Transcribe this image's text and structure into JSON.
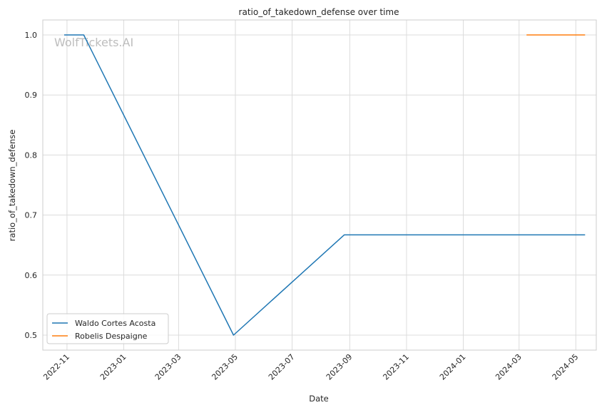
{
  "chart_data": {
    "type": "line",
    "title": "ratio_of_takedown_defense over time",
    "xlabel": "Date",
    "ylabel": "ratio_of_takedown_defense",
    "watermark": "WolfTickets.AI",
    "x_tick_labels": [
      "2022-11",
      "2023-01",
      "2023-03",
      "2023-05",
      "2023-07",
      "2023-09",
      "2023-11",
      "2024-01",
      "2024-03",
      "2024-05"
    ],
    "y_tick_labels": [
      "0.5",
      "0.6",
      "0.7",
      "0.8",
      "0.9",
      "1.0"
    ],
    "xlim": [
      "2022-10-06",
      "2024-05-23"
    ],
    "ylim": [
      0.475,
      1.025
    ],
    "grid": true,
    "legend_position": "lower-left",
    "series": [
      {
        "name": "Waldo Cortes Acosta",
        "color": "#1f77b4",
        "points": [
          {
            "x": "2022-10-29",
            "y": 1.0
          },
          {
            "x": "2022-11-19",
            "y": 1.0
          },
          {
            "x": "2023-04-29",
            "y": 0.5
          },
          {
            "x": "2023-08-26",
            "y": 0.667
          },
          {
            "x": "2024-05-11",
            "y": 0.667
          }
        ]
      },
      {
        "name": "Robelis Despaigne",
        "color": "#ff7f0e",
        "points": [
          {
            "x": "2024-03-09",
            "y": 1.0
          },
          {
            "x": "2024-05-11",
            "y": 1.0
          }
        ]
      }
    ]
  }
}
